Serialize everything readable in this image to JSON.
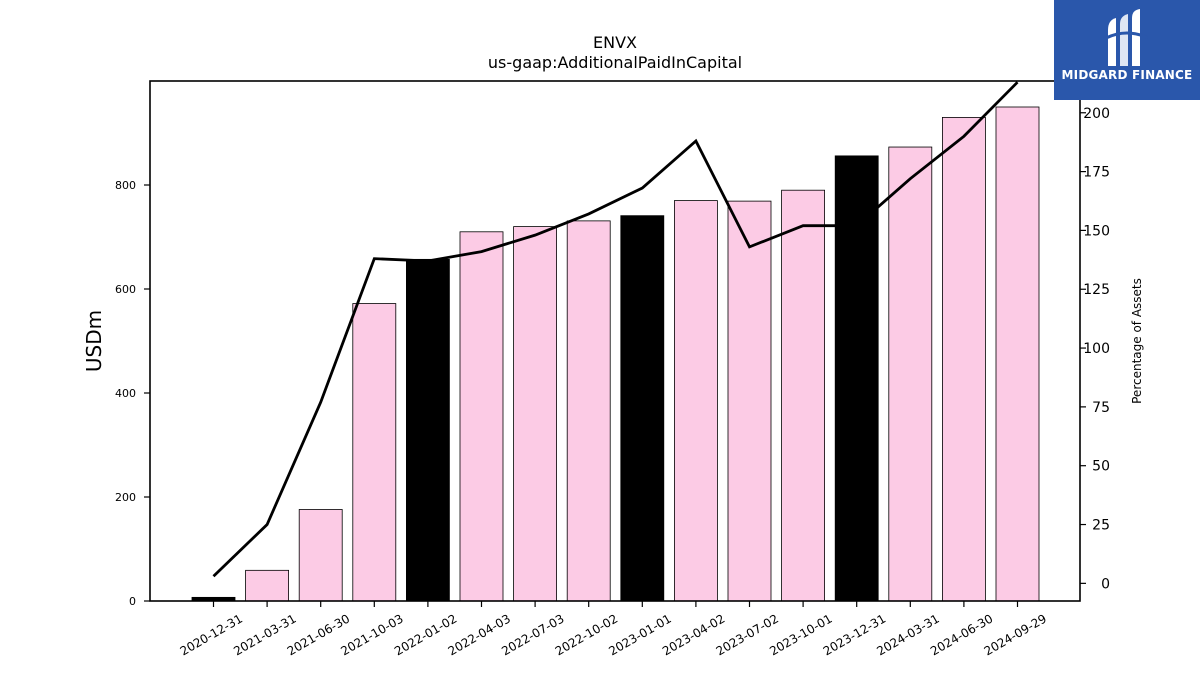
{
  "chart_data": {
    "type": "bar",
    "title": "ENVX",
    "subtitle": "us-gaap:AdditionalPaidInCapital",
    "ylabel": "USDm",
    "y2label": "Percentage of Assets",
    "ylim": [
      0,
      1000
    ],
    "y2lim": [
      -7.5,
      213.5
    ],
    "yticks": [
      0,
      200,
      400,
      600,
      800
    ],
    "y2ticks": [
      0,
      25,
      50,
      75,
      100,
      125,
      150,
      175,
      200
    ],
    "categories": [
      "2020-12-31",
      "2021-03-31",
      "2021-06-30",
      "2021-10-03",
      "2022-01-02",
      "2022-04-03",
      "2022-07-03",
      "2022-10-02",
      "2023-01-01",
      "2023-04-02",
      "2023-07-02",
      "2023-10-01",
      "2023-12-31",
      "2024-03-31",
      "2024-06-30",
      "2024-09-29"
    ],
    "series": [
      {
        "type": "bar",
        "values": [
          7,
          59,
          176,
          572,
          657,
          710,
          720,
          731,
          741,
          770,
          769,
          790,
          856,
          873,
          930,
          950
        ],
        "colors": [
          "#000000",
          "#fccbe5",
          "#fccbe5",
          "#fccbe5",
          "#000000",
          "#fccbe5",
          "#fccbe5",
          "#fccbe5",
          "#000000",
          "#fccbe5",
          "#fccbe5",
          "#fccbe5",
          "#000000",
          "#fccbe5",
          "#fccbe5",
          "#fccbe5"
        ]
      },
      {
        "type": "line",
        "axis": "right",
        "color": "#000000",
        "values": [
          3,
          25,
          77,
          138,
          137,
          141,
          148,
          157,
          168,
          188,
          143,
          152,
          152,
          172,
          190,
          213
        ]
      }
    ],
    "grid": false,
    "legend": "none"
  },
  "logo": {
    "text": "MIDGARD FINANCE",
    "icon": "midgard-logo-icon",
    "background": "#2a57ab"
  }
}
